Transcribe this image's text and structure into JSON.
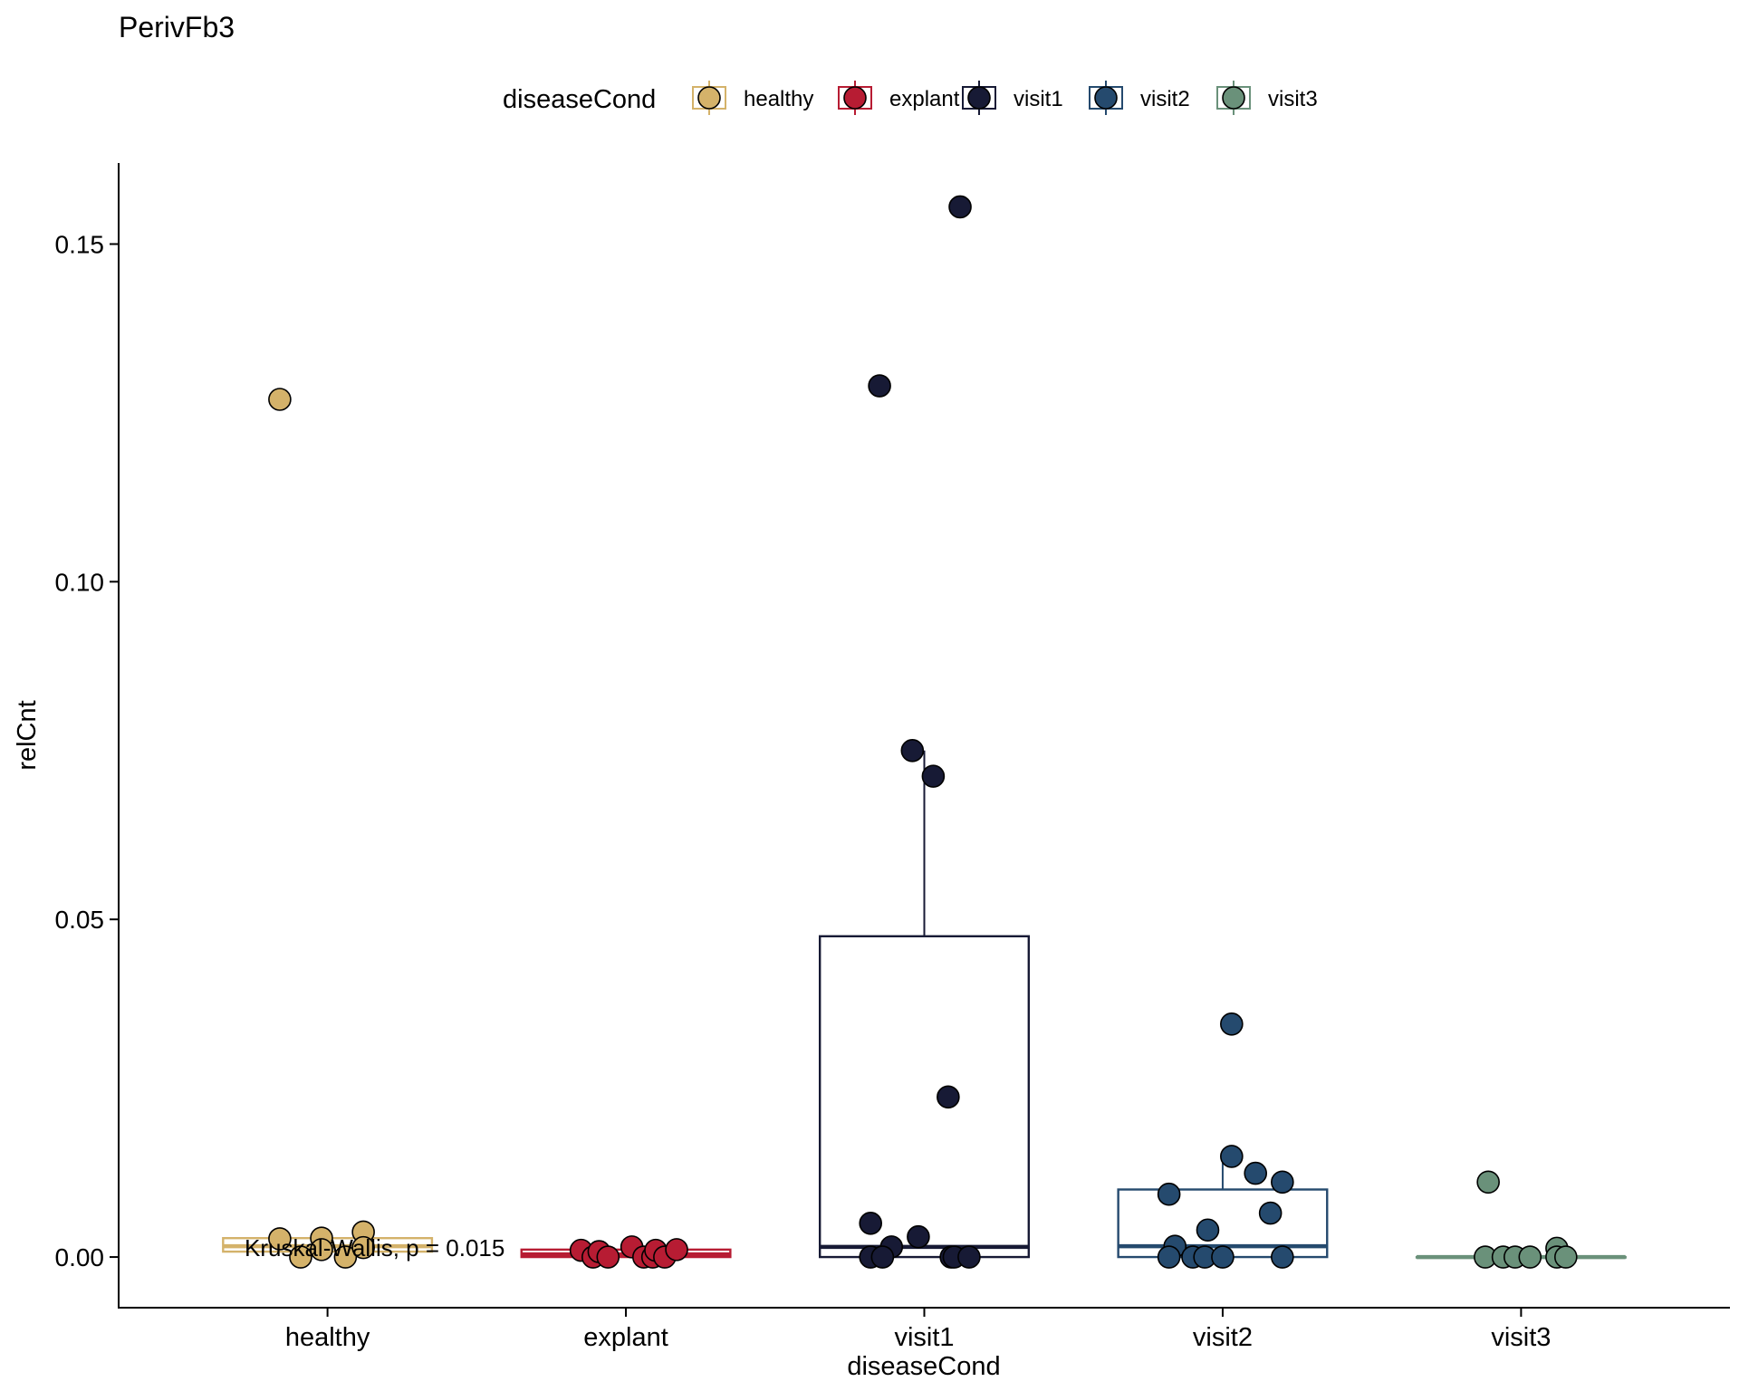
{
  "chart_data": {
    "type": "box",
    "title": "PerivFb3",
    "xlabel": "diseaseCond",
    "ylabel": "relCnt",
    "ylim": [
      -0.0075,
      0.162
    ],
    "yticks": [
      "0.00",
      "0.05",
      "0.10",
      "0.15"
    ],
    "ytick_values": [
      0,
      0.05,
      0.1,
      0.15
    ],
    "grid": false,
    "legend": {
      "title": "diseaseCond",
      "placement": "top",
      "entries": [
        "healthy",
        "explant",
        "visit1",
        "visit2",
        "visit3"
      ]
    },
    "annotation": "Kruskal-Wallis, p = 0.015",
    "categories": [
      "healthy",
      "explant",
      "visit1",
      "visit2",
      "visit3"
    ],
    "colors": {
      "healthy": "#D4B26A",
      "explant": "#B71C33",
      "visit1": "#171A35",
      "visit2": "#254A6E",
      "visit3": "#6A917A"
    },
    "series": [
      {
        "name": "healthy",
        "box": {
          "q1": 0.0008,
          "median": 0.0016,
          "q3": 0.0028,
          "whisker_low": 0.0,
          "whisker_high": 0.0036
        },
        "points": [
          {
            "x": -0.16,
            "y": 0.127
          },
          {
            "x": -0.16,
            "y": 0.0027
          },
          {
            "x": -0.09,
            "y": 0.0
          },
          {
            "x": -0.02,
            "y": 0.0028
          },
          {
            "x": -0.02,
            "y": 0.0011
          },
          {
            "x": 0.06,
            "y": 0.0
          },
          {
            "x": 0.12,
            "y": 0.0037
          },
          {
            "x": 0.12,
            "y": 0.0014
          }
        ]
      },
      {
        "name": "explant",
        "box": {
          "q1": 0.0,
          "median": 0.0004,
          "q3": 0.0011,
          "whisker_low": 0.0,
          "whisker_high": 0.0012
        },
        "points": [
          {
            "x": -0.15,
            "y": 0.001
          },
          {
            "x": -0.11,
            "y": 0.0
          },
          {
            "x": -0.09,
            "y": 0.0008
          },
          {
            "x": -0.06,
            "y": 0.0
          },
          {
            "x": 0.02,
            "y": 0.0015
          },
          {
            "x": 0.06,
            "y": 0.0
          },
          {
            "x": 0.09,
            "y": 0.0
          },
          {
            "x": 0.1,
            "y": 0.001
          },
          {
            "x": 0.13,
            "y": 0.0
          },
          {
            "x": 0.17,
            "y": 0.0011
          }
        ]
      },
      {
        "name": "visit1",
        "box": {
          "q1": 0.0,
          "median": 0.0015,
          "q3": 0.0475,
          "whisker_low": 0.0,
          "whisker_high": 0.075
        },
        "points": [
          {
            "x": 0.12,
            "y": 0.1555
          },
          {
            "x": -0.15,
            "y": 0.129
          },
          {
            "x": -0.04,
            "y": 0.075
          },
          {
            "x": 0.03,
            "y": 0.0712
          },
          {
            "x": 0.08,
            "y": 0.0237
          },
          {
            "x": -0.18,
            "y": 0.005
          },
          {
            "x": -0.11,
            "y": 0.0015
          },
          {
            "x": -0.02,
            "y": 0.003
          },
          {
            "x": -0.18,
            "y": 0.0
          },
          {
            "x": -0.14,
            "y": 0.0
          },
          {
            "x": 0.09,
            "y": 0.0
          },
          {
            "x": 0.1,
            "y": 0.0
          },
          {
            "x": 0.15,
            "y": 0.0
          }
        ]
      },
      {
        "name": "visit2",
        "box": {
          "q1": 0.0,
          "median": 0.0016,
          "q3": 0.01,
          "whisker_low": 0.0,
          "whisker_high": 0.0148
        },
        "points": [
          {
            "x": 0.03,
            "y": 0.0345
          },
          {
            "x": 0.03,
            "y": 0.0149
          },
          {
            "x": 0.11,
            "y": 0.0124
          },
          {
            "x": 0.2,
            "y": 0.0111
          },
          {
            "x": -0.18,
            "y": 0.0093
          },
          {
            "x": 0.16,
            "y": 0.0065
          },
          {
            "x": -0.05,
            "y": 0.004
          },
          {
            "x": -0.16,
            "y": 0.0016
          },
          {
            "x": -0.18,
            "y": 0.0
          },
          {
            "x": -0.1,
            "y": 0.0
          },
          {
            "x": -0.06,
            "y": 0.0
          },
          {
            "x": 0.0,
            "y": 0.0
          },
          {
            "x": 0.2,
            "y": 0.0
          }
        ]
      },
      {
        "name": "visit3",
        "box": {
          "q1": 0.0,
          "median": 0.0,
          "q3": 0.0,
          "whisker_low": 0.0,
          "whisker_high": 0.0
        },
        "points": [
          {
            "x": -0.11,
            "y": 0.0111
          },
          {
            "x": -0.12,
            "y": 0.0
          },
          {
            "x": -0.06,
            "y": 0.0
          },
          {
            "x": -0.02,
            "y": 0.0
          },
          {
            "x": 0.03,
            "y": 0.0
          },
          {
            "x": 0.12,
            "y": 0.0013
          },
          {
            "x": 0.12,
            "y": 0.0
          },
          {
            "x": 0.15,
            "y": 0.0
          }
        ]
      }
    ]
  }
}
